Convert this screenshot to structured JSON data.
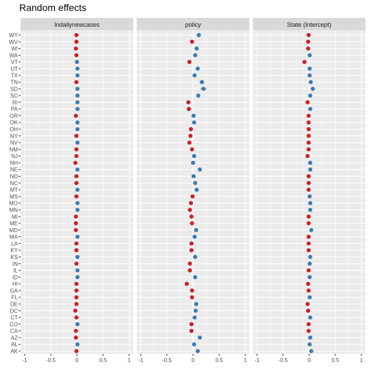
{
  "chart_data": {
    "type": "scatter",
    "title": "Random effects",
    "xlim": [
      -1,
      1
    ],
    "x_ticks": [
      -1,
      -0.5,
      0,
      0.5,
      1
    ],
    "x_tick_labels": [
      "-1",
      "-0.5",
      "0",
      "0.5",
      "1"
    ],
    "grid": true,
    "legend": "none",
    "colors": {
      "negative": "#cb2027",
      "positive": "#3d7bb1",
      "panel_bg": "#ebebeb",
      "strip_bg": "#d9d9d9",
      "grid": "#ffffff"
    },
    "states": [
      "WY",
      "WV",
      "WI",
      "WA",
      "VT",
      "UT",
      "TX",
      "TN",
      "SD",
      "SC",
      "RI",
      "PA",
      "OR",
      "OK",
      "OH",
      "NY",
      "NV",
      "NM",
      "NJ",
      "NH",
      "NE",
      "ND",
      "NC",
      "MT",
      "MS",
      "MO",
      "MN",
      "MI",
      "ME",
      "MD",
      "MA",
      "LA",
      "KY",
      "KS",
      "IN",
      "IL",
      "ID",
      "HI",
      "GA",
      "FL",
      "DE",
      "DC",
      "CT",
      "CO",
      "CA",
      "AZ",
      "AL",
      "AK"
    ],
    "panels": [
      {
        "name": "lndailynewcases",
        "values": [
          -0.01,
          -0.01,
          -0.02,
          -0.01,
          0.0,
          0.01,
          0.01,
          -0.01,
          0.01,
          0.01,
          0.01,
          0.01,
          -0.02,
          0.01,
          0.01,
          -0.01,
          0.01,
          -0.01,
          -0.01,
          -0.03,
          0.01,
          -0.01,
          -0.01,
          0.01,
          -0.01,
          0.01,
          0.01,
          -0.02,
          -0.02,
          -0.02,
          0.01,
          -0.01,
          -0.01,
          0.01,
          -0.01,
          0.01,
          0.01,
          -0.01,
          -0.01,
          -0.01,
          -0.01,
          -0.03,
          -0.01,
          0.01,
          -0.02,
          -0.02,
          0.01,
          -0.01
        ]
      },
      {
        "name": "policy",
        "values": [
          0.11,
          -0.02,
          0.07,
          0.04,
          -0.07,
          0.09,
          0.03,
          0.17,
          0.2,
          0.1,
          -0.09,
          -0.08,
          0.01,
          0.02,
          -0.04,
          -0.05,
          -0.07,
          -0.02,
          0.02,
          0.0,
          0.13,
          0.01,
          0.04,
          0.07,
          -0.01,
          -0.04,
          -0.06,
          -0.03,
          -0.02,
          0.06,
          0.03,
          -0.03,
          -0.03,
          0.04,
          -0.06,
          -0.06,
          0.04,
          -0.12,
          -0.02,
          -0.02,
          0.06,
          0.05,
          0.03,
          -0.03,
          -0.03,
          0.13,
          0.02,
          0.09
        ]
      },
      {
        "name": "State (Intercept)",
        "values": [
          -0.01,
          -0.02,
          -0.02,
          0.01,
          -0.09,
          0.01,
          0.01,
          0.03,
          0.07,
          0.02,
          -0.03,
          0.02,
          -0.01,
          -0.01,
          -0.01,
          -0.01,
          -0.01,
          -0.01,
          -0.03,
          0.02,
          0.02,
          -0.01,
          -0.01,
          -0.01,
          0.01,
          0.02,
          0.02,
          -0.01,
          -0.01,
          0.04,
          -0.01,
          -0.01,
          -0.01,
          0.02,
          0.01,
          -0.01,
          0.01,
          -0.02,
          -0.01,
          0.01,
          -0.03,
          -0.02,
          0.02,
          -0.01,
          -0.01,
          0.02,
          0.01,
          0.04
        ]
      }
    ]
  }
}
